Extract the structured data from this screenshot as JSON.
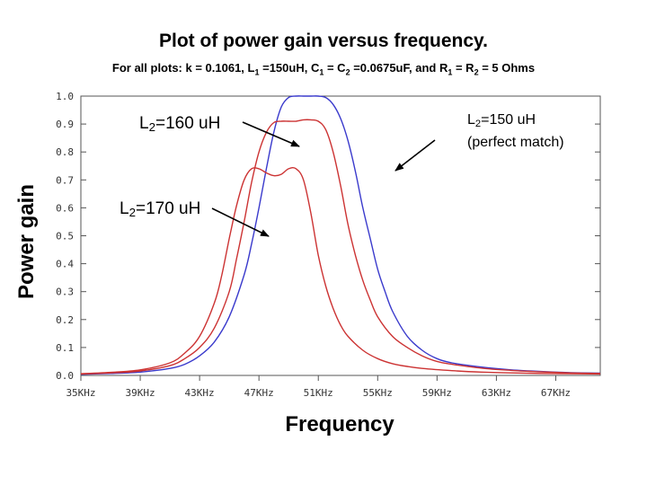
{
  "chart_data": {
    "type": "line",
    "title": "Plot of power gain versus frequency.",
    "subtitle": {
      "parts": [
        {
          "t": "For all plots: k = 0.1061, L"
        },
        {
          "t": "1",
          "sub": true
        },
        {
          "t": " =150uH, C"
        },
        {
          "t": "1",
          "sub": true
        },
        {
          "t": " = C"
        },
        {
          "t": "2",
          "sub": true
        },
        {
          "t": " =0.0675uF, and R"
        },
        {
          "t": "1",
          "sub": true
        },
        {
          "t": " = R"
        },
        {
          "t": "2",
          "sub": true
        },
        {
          "t": " = 5 Ohms"
        }
      ]
    },
    "xlabel": "Frequency",
    "ylabel": "Power gain",
    "xlim": [
      35,
      70
    ],
    "ylim": [
      0,
      1.0
    ],
    "xticks": [
      35,
      39,
      43,
      47,
      51,
      55,
      59,
      63,
      67
    ],
    "xtick_labels": [
      "35KHz",
      "39KHz",
      "43KHz",
      "47KHz",
      "51KHz",
      "55KHz",
      "59KHz",
      "63KHz",
      "67KHz"
    ],
    "yticks": [
      0.0,
      0.1,
      0.2,
      0.3,
      0.4,
      0.5,
      0.6,
      0.7,
      0.8,
      0.9,
      1.0
    ],
    "ytick_labels": [
      "0.0",
      "0.1",
      "0.2",
      "0.3",
      "0.4",
      "0.5",
      "0.6",
      "0.7",
      "0.8",
      "0.9",
      "1.0"
    ],
    "grid": false,
    "series": [
      {
        "color": "#3a3acc",
        "x": [
          35,
          37,
          39,
          41,
          42,
          43,
          44,
          45,
          46,
          46.5,
          47,
          47.5,
          48,
          48.5,
          49,
          49.5,
          50,
          50.5,
          51,
          51.5,
          52,
          52.5,
          53,
          53.5,
          54,
          54.5,
          55,
          55.5,
          56,
          57,
          58,
          59,
          60,
          62,
          64,
          66,
          68,
          70
        ],
        "values": [
          0.004,
          0.007,
          0.012,
          0.025,
          0.04,
          0.07,
          0.12,
          0.21,
          0.36,
          0.47,
          0.6,
          0.74,
          0.87,
          0.96,
          0.995,
          1.0,
          1.0,
          1.0,
          1.0,
          0.995,
          0.97,
          0.92,
          0.84,
          0.73,
          0.6,
          0.49,
          0.38,
          0.3,
          0.23,
          0.14,
          0.09,
          0.06,
          0.045,
          0.03,
          0.02,
          0.014,
          0.01,
          0.008
        ]
      },
      {
        "color": "#cc3333",
        "x": [
          35,
          37,
          39,
          41,
          42,
          43,
          44,
          45,
          45.5,
          46,
          46.5,
          47,
          47.5,
          48,
          48.5,
          49,
          49.5,
          50,
          50.5,
          51,
          51.5,
          52,
          52.5,
          53,
          53.5,
          54,
          54.5,
          55,
          56,
          57,
          58,
          59,
          60,
          62,
          64,
          66,
          68,
          70
        ],
        "values": [
          0.005,
          0.009,
          0.016,
          0.035,
          0.06,
          0.1,
          0.17,
          0.3,
          0.42,
          0.55,
          0.69,
          0.8,
          0.87,
          0.905,
          0.91,
          0.91,
          0.91,
          0.915,
          0.915,
          0.91,
          0.88,
          0.8,
          0.68,
          0.54,
          0.43,
          0.34,
          0.27,
          0.21,
          0.14,
          0.1,
          0.07,
          0.05,
          0.04,
          0.026,
          0.018,
          0.013,
          0.009,
          0.007
        ]
      },
      {
        "color": "#cc3333",
        "x": [
          35,
          37,
          39,
          41,
          42,
          43,
          44,
          44.5,
          45,
          45.5,
          46,
          46.5,
          47,
          47.5,
          48,
          48.5,
          49,
          49.5,
          50,
          50.5,
          51,
          51.5,
          52,
          52.5,
          53,
          54,
          55,
          56,
          57,
          58,
          60,
          62,
          64,
          66,
          68,
          70
        ],
        "values": [
          0.006,
          0.011,
          0.02,
          0.045,
          0.08,
          0.14,
          0.26,
          0.36,
          0.49,
          0.61,
          0.7,
          0.74,
          0.74,
          0.725,
          0.715,
          0.72,
          0.74,
          0.74,
          0.7,
          0.58,
          0.43,
          0.32,
          0.24,
          0.18,
          0.14,
          0.09,
          0.06,
          0.042,
          0.032,
          0.025,
          0.017,
          0.012,
          0.009,
          0.007,
          0.006,
          0.005
        ]
      }
    ],
    "annotations": [
      {
        "parts": [
          {
            "t": "L"
          },
          {
            "t": "2",
            "sub": true
          },
          {
            "t": "=160 uH"
          }
        ]
      },
      {
        "parts": [
          {
            "t": "L"
          },
          {
            "t": "2",
            "sub": true
          },
          {
            "t": "=170 uH"
          }
        ]
      },
      {
        "parts": [
          {
            "t": "L"
          },
          {
            "t": "2",
            "sub": true
          },
          {
            "t": "=150 uH"
          }
        ]
      },
      {
        "parts": [
          {
            "t": "(perfect match)"
          }
        ]
      }
    ]
  }
}
